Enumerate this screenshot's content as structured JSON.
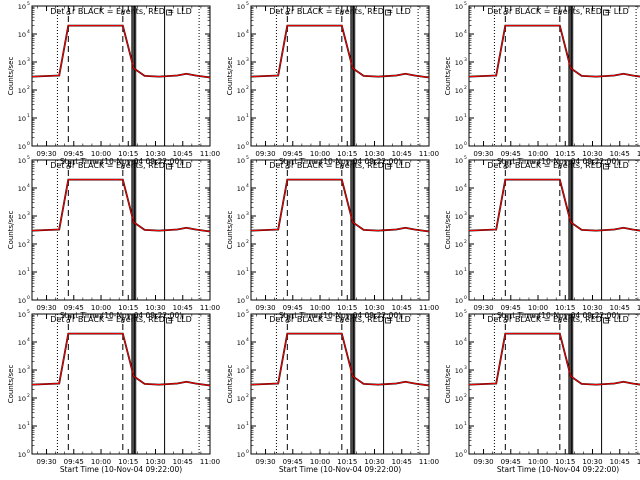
{
  "figure": {
    "xlabel": "Start Time (10-Nov-04 09:22:00)",
    "ylabel": "Counts/sec",
    "x_tick_labels": [
      "09:30",
      "09:45",
      "10:00",
      "10:15",
      "10:30",
      "10:45",
      "11:00"
    ],
    "y_tick_labels": [
      "10",
      "10",
      "10",
      "10",
      "10",
      "10"
    ],
    "y_tick_exponents": [
      "0",
      "1",
      "2",
      "3",
      "4",
      "5"
    ],
    "marker_labels": [
      "o",
      "o",
      "o",
      "o"
    ],
    "colors": {
      "events": "#000000",
      "lld": "#ff0000"
    }
  },
  "chart_data": [
    {
      "type": "line",
      "title": "Det 1r BLACK = Events, RED = LLD",
      "xlabel": "Start Time (10-Nov-04 09:22:00)",
      "ylabel": "Counts/sec",
      "x_unit": "minutes after 09:22",
      "xlim": [
        0,
        98
      ],
      "ylim": [
        1,
        100000
      ],
      "yscale": "log",
      "series": [
        {
          "name": "Events",
          "x": [
            0,
            15,
            20,
            50,
            56,
            62,
            70,
            80,
            85,
            90,
            98
          ],
          "y": [
            300,
            330,
            20000,
            20000,
            600,
            320,
            300,
            330,
            380,
            330,
            280
          ]
        },
        {
          "name": "LLD",
          "x": [
            0,
            15,
            20,
            50,
            56,
            62,
            70,
            80,
            85,
            90,
            98
          ],
          "y": [
            300,
            330,
            20000,
            20000,
            600,
            320,
            300,
            330,
            380,
            330,
            280
          ]
        }
      ],
      "vertical_lines": [
        {
          "x": 14,
          "style": "dotted"
        },
        {
          "x": 20,
          "style": "dashed"
        },
        {
          "x": 50,
          "style": "dashed"
        },
        {
          "x": 55,
          "style": "solid"
        },
        {
          "x": 55.7,
          "style": "solid"
        },
        {
          "x": 56.4,
          "style": "solid"
        },
        {
          "x": 57.1,
          "style": "solid"
        },
        {
          "x": 73,
          "style": "solid"
        },
        {
          "x": 92,
          "style": "dotted"
        }
      ]
    },
    {
      "type": "line",
      "title": "Det 2r BLACK = Events, RED = LLD",
      "xlabel": "Start Time (10-Nov-04 09:22:00)",
      "ylabel": "Counts/sec",
      "x_unit": "minutes after 09:22",
      "xlim": [
        0,
        98
      ],
      "ylim": [
        1,
        100000
      ],
      "yscale": "log",
      "series": [
        {
          "name": "Events",
          "x": [
            0,
            15,
            20,
            50,
            56,
            62,
            70,
            80,
            85,
            90,
            98
          ],
          "y": [
            300,
            330,
            20000,
            20000,
            600,
            320,
            300,
            330,
            380,
            330,
            280
          ]
        },
        {
          "name": "LLD",
          "x": [
            0,
            15,
            20,
            50,
            56,
            62,
            70,
            80,
            85,
            90,
            98
          ],
          "y": [
            300,
            330,
            20000,
            20000,
            600,
            320,
            300,
            330,
            380,
            330,
            280
          ]
        }
      ],
      "vertical_lines": [
        {
          "x": 14,
          "style": "dotted"
        },
        {
          "x": 20,
          "style": "dashed"
        },
        {
          "x": 50,
          "style": "dashed"
        },
        {
          "x": 55,
          "style": "solid"
        },
        {
          "x": 55.7,
          "style": "solid"
        },
        {
          "x": 56.4,
          "style": "solid"
        },
        {
          "x": 57.1,
          "style": "solid"
        },
        {
          "x": 73,
          "style": "solid"
        },
        {
          "x": 92,
          "style": "dotted"
        }
      ]
    },
    {
      "type": "line",
      "title": "Det 3r BLACK = Events, RED = LLD",
      "xlabel": "Start Time (10-Nov-04 09:22:00)",
      "ylabel": "Counts/sec",
      "x_unit": "minutes after 09:22",
      "xlim": [
        0,
        98
      ],
      "ylim": [
        1,
        100000
      ],
      "yscale": "log",
      "series": [
        {
          "name": "Events",
          "x": [
            0,
            15,
            20,
            50,
            56,
            62,
            70,
            80,
            85,
            90,
            98
          ],
          "y": [
            300,
            330,
            20000,
            20000,
            600,
            320,
            300,
            330,
            380,
            330,
            280
          ]
        },
        {
          "name": "LLD",
          "x": [
            0,
            15,
            20,
            50,
            56,
            62,
            70,
            80,
            85,
            90,
            98
          ],
          "y": [
            300,
            330,
            20000,
            20000,
            600,
            320,
            300,
            330,
            380,
            330,
            280
          ]
        }
      ],
      "vertical_lines": [
        {
          "x": 14,
          "style": "dotted"
        },
        {
          "x": 20,
          "style": "dashed"
        },
        {
          "x": 50,
          "style": "dashed"
        },
        {
          "x": 55,
          "style": "solid"
        },
        {
          "x": 55.7,
          "style": "solid"
        },
        {
          "x": 56.4,
          "style": "solid"
        },
        {
          "x": 57.1,
          "style": "solid"
        },
        {
          "x": 73,
          "style": "solid"
        },
        {
          "x": 92,
          "style": "dotted"
        }
      ]
    },
    {
      "type": "line",
      "title": "Det 4r BLACK = Events, RED = LLD",
      "xlabel": "Start Time (10-Nov-04 09:22:00)",
      "ylabel": "Counts/sec",
      "x_unit": "minutes after 09:22",
      "xlim": [
        0,
        98
      ],
      "ylim": [
        1,
        100000
      ],
      "yscale": "log",
      "series": [
        {
          "name": "Events",
          "x": [
            0,
            15,
            20,
            50,
            56,
            62,
            70,
            80,
            85,
            90,
            98
          ],
          "y": [
            300,
            330,
            20000,
            20000,
            600,
            320,
            300,
            330,
            380,
            330,
            280
          ]
        },
        {
          "name": "LLD",
          "x": [
            0,
            15,
            20,
            50,
            56,
            62,
            70,
            80,
            85,
            90,
            98
          ],
          "y": [
            300,
            330,
            20000,
            20000,
            600,
            320,
            300,
            330,
            380,
            330,
            280
          ]
        }
      ],
      "vertical_lines": [
        {
          "x": 14,
          "style": "dotted"
        },
        {
          "x": 20,
          "style": "dashed"
        },
        {
          "x": 50,
          "style": "dashed"
        },
        {
          "x": 55,
          "style": "solid"
        },
        {
          "x": 55.7,
          "style": "solid"
        },
        {
          "x": 56.4,
          "style": "solid"
        },
        {
          "x": 57.1,
          "style": "solid"
        },
        {
          "x": 73,
          "style": "solid"
        },
        {
          "x": 92,
          "style": "dotted"
        }
      ]
    },
    {
      "type": "line",
      "title": "Det 5r BLACK = Events, RED = LLD",
      "xlabel": "Start Time (10-Nov-04 09:22:00)",
      "ylabel": "Counts/sec",
      "x_unit": "minutes after 09:22",
      "xlim": [
        0,
        98
      ],
      "ylim": [
        1,
        100000
      ],
      "yscale": "log",
      "series": [
        {
          "name": "Events",
          "x": [
            0,
            15,
            20,
            50,
            56,
            62,
            70,
            80,
            85,
            90,
            98
          ],
          "y": [
            300,
            330,
            20000,
            20000,
            600,
            320,
            300,
            330,
            380,
            330,
            280
          ]
        },
        {
          "name": "LLD",
          "x": [
            0,
            15,
            20,
            50,
            56,
            62,
            70,
            80,
            85,
            90,
            98
          ],
          "y": [
            300,
            330,
            20000,
            20000,
            600,
            320,
            300,
            330,
            380,
            330,
            280
          ]
        }
      ],
      "vertical_lines": [
        {
          "x": 14,
          "style": "dotted"
        },
        {
          "x": 20,
          "style": "dashed"
        },
        {
          "x": 50,
          "style": "dashed"
        },
        {
          "x": 55,
          "style": "solid"
        },
        {
          "x": 55.7,
          "style": "solid"
        },
        {
          "x": 56.4,
          "style": "solid"
        },
        {
          "x": 57.1,
          "style": "solid"
        },
        {
          "x": 73,
          "style": "solid"
        },
        {
          "x": 92,
          "style": "dotted"
        }
      ]
    },
    {
      "type": "line",
      "title": "Det 6r BLACK = Events, RED = LLD",
      "xlabel": "Start Time (10-Nov-04 09:22:00)",
      "ylabel": "Counts/sec",
      "x_unit": "minutes after 09:22",
      "xlim": [
        0,
        98
      ],
      "ylim": [
        1,
        100000
      ],
      "yscale": "log",
      "series": [
        {
          "name": "Events",
          "x": [
            0,
            15,
            20,
            50,
            56,
            62,
            70,
            80,
            85,
            90,
            98
          ],
          "y": [
            300,
            330,
            20000,
            20000,
            600,
            320,
            300,
            330,
            380,
            330,
            280
          ]
        },
        {
          "name": "LLD",
          "x": [
            0,
            15,
            20,
            50,
            56,
            62,
            70,
            80,
            85,
            90,
            98
          ],
          "y": [
            300,
            330,
            20000,
            20000,
            600,
            320,
            300,
            330,
            380,
            330,
            280
          ]
        }
      ],
      "vertical_lines": [
        {
          "x": 14,
          "style": "dotted"
        },
        {
          "x": 20,
          "style": "dashed"
        },
        {
          "x": 50,
          "style": "dashed"
        },
        {
          "x": 55,
          "style": "solid"
        },
        {
          "x": 55.7,
          "style": "solid"
        },
        {
          "x": 56.4,
          "style": "solid"
        },
        {
          "x": 57.1,
          "style": "solid"
        },
        {
          "x": 73,
          "style": "solid"
        },
        {
          "x": 92,
          "style": "dotted"
        }
      ]
    },
    {
      "type": "line",
      "title": "Det 7r BLACK = Events, RED = LLD",
      "xlabel": "Start Time (10-Nov-04 09:22:00)",
      "ylabel": "Counts/sec",
      "x_unit": "minutes after 09:22",
      "xlim": [
        0,
        98
      ],
      "ylim": [
        1,
        100000
      ],
      "yscale": "log",
      "series": [
        {
          "name": "Events",
          "x": [
            0,
            15,
            20,
            50,
            56,
            62,
            70,
            80,
            85,
            90,
            98
          ],
          "y": [
            300,
            330,
            20000,
            20000,
            600,
            320,
            300,
            330,
            380,
            330,
            280
          ]
        },
        {
          "name": "LLD",
          "x": [
            0,
            15,
            20,
            50,
            56,
            62,
            70,
            80,
            85,
            90,
            98
          ],
          "y": [
            300,
            330,
            20000,
            20000,
            600,
            320,
            300,
            330,
            380,
            330,
            280
          ]
        }
      ],
      "vertical_lines": [
        {
          "x": 14,
          "style": "dotted"
        },
        {
          "x": 20,
          "style": "dashed"
        },
        {
          "x": 50,
          "style": "dashed"
        },
        {
          "x": 55,
          "style": "solid"
        },
        {
          "x": 55.7,
          "style": "solid"
        },
        {
          "x": 56.4,
          "style": "solid"
        },
        {
          "x": 57.1,
          "style": "solid"
        },
        {
          "x": 73,
          "style": "solid"
        },
        {
          "x": 92,
          "style": "dotted"
        }
      ]
    },
    {
      "type": "line",
      "title": "Det 8r BLACK = Events, RED = LLD",
      "xlabel": "Start Time (10-Nov-04 09:22:00)",
      "ylabel": "Counts/sec",
      "x_unit": "minutes after 09:22",
      "xlim": [
        0,
        98
      ],
      "ylim": [
        1,
        100000
      ],
      "yscale": "log",
      "series": [
        {
          "name": "Events",
          "x": [
            0,
            15,
            20,
            50,
            56,
            62,
            70,
            80,
            85,
            90,
            98
          ],
          "y": [
            300,
            330,
            20000,
            20000,
            600,
            320,
            300,
            330,
            380,
            330,
            280
          ]
        },
        {
          "name": "LLD",
          "x": [
            0,
            15,
            20,
            50,
            56,
            62,
            70,
            80,
            85,
            90,
            98
          ],
          "y": [
            300,
            330,
            20000,
            20000,
            600,
            320,
            300,
            330,
            380,
            330,
            280
          ]
        }
      ],
      "vertical_lines": [
        {
          "x": 14,
          "style": "dotted"
        },
        {
          "x": 20,
          "style": "dashed"
        },
        {
          "x": 50,
          "style": "dashed"
        },
        {
          "x": 55,
          "style": "solid"
        },
        {
          "x": 55.7,
          "style": "solid"
        },
        {
          "x": 56.4,
          "style": "solid"
        },
        {
          "x": 57.1,
          "style": "solid"
        },
        {
          "x": 73,
          "style": "solid"
        },
        {
          "x": 92,
          "style": "dotted"
        }
      ]
    },
    {
      "type": "line",
      "title": "Det 9r BLACK = Events, RED = LLD",
      "xlabel": "Start Time (10-Nov-04 09:22:00)",
      "ylabel": "Counts/sec",
      "x_unit": "minutes after 09:22",
      "xlim": [
        0,
        98
      ],
      "ylim": [
        1,
        100000
      ],
      "yscale": "log",
      "series": [
        {
          "name": "Events",
          "x": [
            0,
            15,
            20,
            50,
            56,
            62,
            70,
            80,
            85,
            90,
            98
          ],
          "y": [
            300,
            330,
            20000,
            20000,
            600,
            320,
            300,
            330,
            380,
            330,
            280
          ]
        },
        {
          "name": "LLD",
          "x": [
            0,
            15,
            20,
            50,
            56,
            62,
            70,
            80,
            85,
            90,
            98
          ],
          "y": [
            300,
            330,
            20000,
            20000,
            600,
            320,
            300,
            330,
            380,
            330,
            280
          ]
        }
      ],
      "vertical_lines": [
        {
          "x": 14,
          "style": "dotted"
        },
        {
          "x": 20,
          "style": "dashed"
        },
        {
          "x": 50,
          "style": "dashed"
        },
        {
          "x": 55,
          "style": "solid"
        },
        {
          "x": 55.7,
          "style": "solid"
        },
        {
          "x": 56.4,
          "style": "solid"
        },
        {
          "x": 57.1,
          "style": "solid"
        },
        {
          "x": 73,
          "style": "solid"
        },
        {
          "x": 92,
          "style": "dotted"
        }
      ]
    }
  ]
}
